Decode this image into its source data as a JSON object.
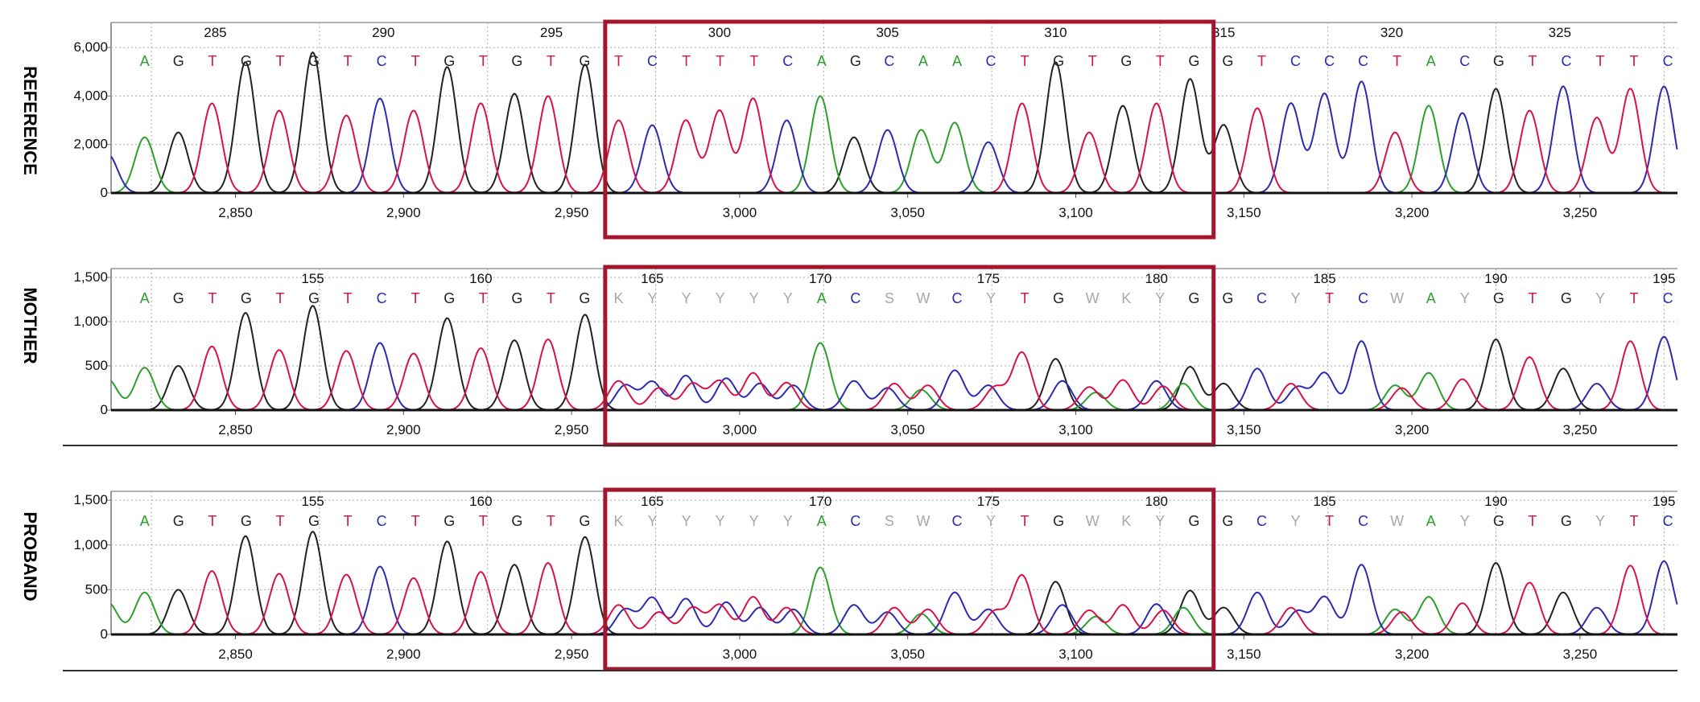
{
  "colors": {
    "A": "#2ca02c",
    "C": "#2b2bb0",
    "G": "#222222",
    "T": "#d8124a",
    "N": "#a8a8a8",
    "box": "#a3162c"
  },
  "chart_data": [
    {
      "type": "line",
      "name": "REFERENCE",
      "ylim": [
        0,
        6500
      ],
      "yticks": [
        0,
        2000,
        4000,
        6000
      ],
      "ytick_labels": [
        "0",
        "2,000",
        "4,000",
        "6,000"
      ],
      "xlim": [
        2813,
        3279
      ],
      "xticks": [
        2850,
        2900,
        2950,
        3000,
        3050,
        3100,
        3150,
        3200,
        3250
      ],
      "xtick_labels": [
        "2,850",
        "2,900",
        "2,950",
        "3,000",
        "3,050",
        "3,100",
        "3,150",
        "3,200",
        "3,250"
      ],
      "first_base_x": 2823,
      "base_spacing": 10.07,
      "bases": "AGTGTGTCTGTGTGTCTTTCAGCAACTGTGTGGTCCCTACGTCTTC",
      "positions": [
        {
          "label": "285",
          "x": 2844
        },
        {
          "label": "290",
          "x": 2894
        },
        {
          "label": "295",
          "x": 2944
        },
        {
          "label": "300",
          "x": 2994
        },
        {
          "label": "305",
          "x": 3044
        },
        {
          "label": "310",
          "x": 3094
        },
        {
          "label": "315",
          "x": 3144
        },
        {
          "label": "320",
          "x": 3194
        },
        {
          "label": "325",
          "x": 3244
        }
      ],
      "highlight_range": [
        2960,
        3141
      ],
      "peaks": [
        {
          "x": 2812,
          "h": 1600,
          "b": "C"
        },
        {
          "x": 2823,
          "h": 2300,
          "b": "A"
        },
        {
          "x": 2833,
          "h": 2500,
          "b": "G"
        },
        {
          "x": 2843,
          "h": 3700,
          "b": "T"
        },
        {
          "x": 2853,
          "h": 5400,
          "b": "G"
        },
        {
          "x": 2863,
          "h": 3400,
          "b": "T"
        },
        {
          "x": 2873,
          "h": 5800,
          "b": "G"
        },
        {
          "x": 2883,
          "h": 3200,
          "b": "T"
        },
        {
          "x": 2893,
          "h": 3900,
          "b": "C"
        },
        {
          "x": 2903,
          "h": 3400,
          "b": "T"
        },
        {
          "x": 2913,
          "h": 5200,
          "b": "G"
        },
        {
          "x": 2923,
          "h": 3700,
          "b": "T"
        },
        {
          "x": 2933,
          "h": 4100,
          "b": "G"
        },
        {
          "x": 2943,
          "h": 4000,
          "b": "T"
        },
        {
          "x": 2954,
          "h": 5300,
          "b": "G"
        },
        {
          "x": 2964,
          "h": 3000,
          "b": "T"
        },
        {
          "x": 2974,
          "h": 2800,
          "b": "C"
        },
        {
          "x": 2984,
          "h": 3000,
          "b": "T"
        },
        {
          "x": 2994,
          "h": 3400,
          "b": "T"
        },
        {
          "x": 3004,
          "h": 3900,
          "b": "T"
        },
        {
          "x": 3014,
          "h": 3000,
          "b": "C"
        },
        {
          "x": 3024,
          "h": 4000,
          "b": "A"
        },
        {
          "x": 3034,
          "h": 2300,
          "b": "G"
        },
        {
          "x": 3044,
          "h": 2600,
          "b": "C"
        },
        {
          "x": 3054,
          "h": 2600,
          "b": "A"
        },
        {
          "x": 3064,
          "h": 2900,
          "b": "A"
        },
        {
          "x": 3074,
          "h": 2100,
          "b": "C"
        },
        {
          "x": 3084,
          "h": 3700,
          "b": "T"
        },
        {
          "x": 3094,
          "h": 5400,
          "b": "G"
        },
        {
          "x": 3104,
          "h": 2500,
          "b": "T"
        },
        {
          "x": 3114,
          "h": 3600,
          "b": "G"
        },
        {
          "x": 3124,
          "h": 3700,
          "b": "T"
        },
        {
          "x": 3134,
          "h": 4700,
          "b": "G"
        },
        {
          "x": 3144,
          "h": 2800,
          "b": "G"
        },
        {
          "x": 3154,
          "h": 3500,
          "b": "T"
        },
        {
          "x": 3164,
          "h": 3700,
          "b": "C"
        },
        {
          "x": 3174,
          "h": 4100,
          "b": "C"
        },
        {
          "x": 3185,
          "h": 4600,
          "b": "C"
        },
        {
          "x": 3195,
          "h": 2500,
          "b": "T"
        },
        {
          "x": 3205,
          "h": 3600,
          "b": "A"
        },
        {
          "x": 3215,
          "h": 3300,
          "b": "C"
        },
        {
          "x": 3225,
          "h": 4300,
          "b": "G"
        },
        {
          "x": 3235,
          "h": 3400,
          "b": "T"
        },
        {
          "x": 3245,
          "h": 4400,
          "b": "C"
        },
        {
          "x": 3255,
          "h": 3100,
          "b": "T"
        },
        {
          "x": 3265,
          "h": 4300,
          "b": "T"
        },
        {
          "x": 3275,
          "h": 4400,
          "b": "C"
        }
      ]
    },
    {
      "type": "line",
      "name": "MOTHER",
      "ylim": [
        0,
        1600
      ],
      "yticks": [
        0,
        500,
        1000,
        1500
      ],
      "ytick_labels": [
        "0",
        "500",
        "1,000",
        "1,500"
      ],
      "xlim": [
        2813,
        3279
      ],
      "xticks": [
        2850,
        2900,
        2950,
        3000,
        3050,
        3100,
        3150,
        3200,
        3250
      ],
      "xtick_labels": [
        "2,850",
        "2,900",
        "2,950",
        "3,000",
        "3,050",
        "3,100",
        "3,150",
        "3,200",
        "3,250"
      ],
      "first_base_x": 2823,
      "base_spacing": 10.07,
      "bases": "AGTGTGTCTGTGTGKYYYYYACSWCYTGWKYGGCYTCWAYGTGYTC",
      "positions": [
        {
          "label": "155",
          "x": 2873
        },
        {
          "label": "160",
          "x": 2923
        },
        {
          "label": "165",
          "x": 2974
        },
        {
          "label": "170",
          "x": 3024
        },
        {
          "label": "175",
          "x": 3074
        },
        {
          "label": "180",
          "x": 3124
        },
        {
          "label": "185",
          "x": 3174
        },
        {
          "label": "190",
          "x": 3225
        },
        {
          "label": "195",
          "x": 3275
        }
      ],
      "highlight_range": [
        2960,
        3141
      ],
      "peaks": [
        {
          "x": 2812,
          "h": 350,
          "b": "A"
        },
        {
          "x": 2823,
          "h": 480,
          "b": "A"
        },
        {
          "x": 2833,
          "h": 500,
          "b": "G"
        },
        {
          "x": 2843,
          "h": 720,
          "b": "T"
        },
        {
          "x": 2853,
          "h": 1100,
          "b": "G"
        },
        {
          "x": 2863,
          "h": 680,
          "b": "T"
        },
        {
          "x": 2873,
          "h": 1180,
          "b": "G"
        },
        {
          "x": 2883,
          "h": 670,
          "b": "T"
        },
        {
          "x": 2893,
          "h": 760,
          "b": "C"
        },
        {
          "x": 2903,
          "h": 640,
          "b": "T"
        },
        {
          "x": 2913,
          "h": 1040,
          "b": "G"
        },
        {
          "x": 2923,
          "h": 700,
          "b": "T"
        },
        {
          "x": 2933,
          "h": 790,
          "b": "G"
        },
        {
          "x": 2943,
          "h": 800,
          "b": "T"
        },
        {
          "x": 2954,
          "h": 1080,
          "b": "G"
        },
        {
          "x": 2964,
          "h": 330,
          "b": "T"
        },
        {
          "x": 2966,
          "h": 280,
          "b": "C"
        },
        {
          "x": 2974,
          "h": 320,
          "b": "C"
        },
        {
          "x": 2976,
          "h": 250,
          "b": "T"
        },
        {
          "x": 2984,
          "h": 390,
          "b": "C"
        },
        {
          "x": 2986,
          "h": 300,
          "b": "T"
        },
        {
          "x": 2994,
          "h": 330,
          "b": "T"
        },
        {
          "x": 2996,
          "h": 360,
          "b": "C"
        },
        {
          "x": 3004,
          "h": 420,
          "b": "T"
        },
        {
          "x": 3006,
          "h": 300,
          "b": "C"
        },
        {
          "x": 3014,
          "h": 310,
          "b": "T"
        },
        {
          "x": 3016,
          "h": 280,
          "b": "C"
        },
        {
          "x": 3024,
          "h": 760,
          "b": "A"
        },
        {
          "x": 3034,
          "h": 330,
          "b": "C"
        },
        {
          "x": 3044,
          "h": 250,
          "b": "C"
        },
        {
          "x": 3046,
          "h": 300,
          "b": "T"
        },
        {
          "x": 3054,
          "h": 230,
          "b": "A"
        },
        {
          "x": 3056,
          "h": 280,
          "b": "T"
        },
        {
          "x": 3064,
          "h": 450,
          "b": "C"
        },
        {
          "x": 3074,
          "h": 280,
          "b": "C"
        },
        {
          "x": 3076,
          "h": 260,
          "b": "T"
        },
        {
          "x": 3084,
          "h": 650,
          "b": "T"
        },
        {
          "x": 3094,
          "h": 580,
          "b": "G"
        },
        {
          "x": 3096,
          "h": 330,
          "b": "C"
        },
        {
          "x": 3104,
          "h": 260,
          "b": "T"
        },
        {
          "x": 3106,
          "h": 200,
          "b": "A"
        },
        {
          "x": 3114,
          "h": 340,
          "b": "T"
        },
        {
          "x": 3124,
          "h": 330,
          "b": "C"
        },
        {
          "x": 3126,
          "h": 270,
          "b": "T"
        },
        {
          "x": 3132,
          "h": 300,
          "b": "A"
        },
        {
          "x": 3134,
          "h": 490,
          "b": "G"
        },
        {
          "x": 3144,
          "h": 300,
          "b": "G"
        },
        {
          "x": 3154,
          "h": 470,
          "b": "C"
        },
        {
          "x": 3164,
          "h": 300,
          "b": "T"
        },
        {
          "x": 3166,
          "h": 260,
          "b": "C"
        },
        {
          "x": 3174,
          "h": 420,
          "b": "C"
        },
        {
          "x": 3185,
          "h": 780,
          "b": "C"
        },
        {
          "x": 3195,
          "h": 280,
          "b": "A"
        },
        {
          "x": 3197,
          "h": 250,
          "b": "T"
        },
        {
          "x": 3205,
          "h": 420,
          "b": "A"
        },
        {
          "x": 3215,
          "h": 350,
          "b": "T"
        },
        {
          "x": 3225,
          "h": 800,
          "b": "G"
        },
        {
          "x": 3235,
          "h": 600,
          "b": "T"
        },
        {
          "x": 3245,
          "h": 470,
          "b": "G"
        },
        {
          "x": 3255,
          "h": 300,
          "b": "C"
        },
        {
          "x": 3265,
          "h": 780,
          "b": "T"
        },
        {
          "x": 3275,
          "h": 830,
          "b": "C"
        }
      ]
    },
    {
      "type": "line",
      "name": "PROBAND",
      "ylim": [
        0,
        1600
      ],
      "yticks": [
        0,
        500,
        1000,
        1500
      ],
      "ytick_labels": [
        "0",
        "500",
        "1,000",
        "1,500"
      ],
      "xlim": [
        2813,
        3279
      ],
      "xticks": [
        2850,
        2900,
        2950,
        3000,
        3050,
        3100,
        3150,
        3200,
        3250
      ],
      "xtick_labels": [
        "2,850",
        "2,900",
        "2,950",
        "3,000",
        "3,050",
        "3,100",
        "3,150",
        "3,200",
        "3,250"
      ],
      "first_base_x": 2823,
      "base_spacing": 10.07,
      "bases": "AGTGTGTCTGTGTGKYYYYYACSWCYTGWKYGGCYTCWAYGTGYTC",
      "positions": [
        {
          "label": "155",
          "x": 2873
        },
        {
          "label": "160",
          "x": 2923
        },
        {
          "label": "165",
          "x": 2974
        },
        {
          "label": "170",
          "x": 3024
        },
        {
          "label": "175",
          "x": 3074
        },
        {
          "label": "180",
          "x": 3124
        },
        {
          "label": "185",
          "x": 3174
        },
        {
          "label": "190",
          "x": 3225
        },
        {
          "label": "195",
          "x": 3275
        }
      ],
      "highlight_range": [
        2960,
        3141
      ],
      "peaks": [
        {
          "x": 2812,
          "h": 360,
          "b": "A"
        },
        {
          "x": 2823,
          "h": 470,
          "b": "A"
        },
        {
          "x": 2833,
          "h": 500,
          "b": "G"
        },
        {
          "x": 2843,
          "h": 710,
          "b": "T"
        },
        {
          "x": 2853,
          "h": 1100,
          "b": "G"
        },
        {
          "x": 2863,
          "h": 680,
          "b": "T"
        },
        {
          "x": 2873,
          "h": 1150,
          "b": "G"
        },
        {
          "x": 2883,
          "h": 670,
          "b": "T"
        },
        {
          "x": 2893,
          "h": 760,
          "b": "C"
        },
        {
          "x": 2903,
          "h": 630,
          "b": "T"
        },
        {
          "x": 2913,
          "h": 1040,
          "b": "G"
        },
        {
          "x": 2923,
          "h": 700,
          "b": "T"
        },
        {
          "x": 2933,
          "h": 780,
          "b": "G"
        },
        {
          "x": 2943,
          "h": 800,
          "b": "T"
        },
        {
          "x": 2954,
          "h": 1090,
          "b": "G"
        },
        {
          "x": 2964,
          "h": 330,
          "b": "T"
        },
        {
          "x": 2966,
          "h": 280,
          "b": "C"
        },
        {
          "x": 2974,
          "h": 410,
          "b": "C"
        },
        {
          "x": 2976,
          "h": 250,
          "b": "T"
        },
        {
          "x": 2984,
          "h": 400,
          "b": "C"
        },
        {
          "x": 2986,
          "h": 300,
          "b": "T"
        },
        {
          "x": 2994,
          "h": 330,
          "b": "T"
        },
        {
          "x": 2996,
          "h": 360,
          "b": "C"
        },
        {
          "x": 3004,
          "h": 420,
          "b": "T"
        },
        {
          "x": 3006,
          "h": 300,
          "b": "C"
        },
        {
          "x": 3014,
          "h": 300,
          "b": "T"
        },
        {
          "x": 3016,
          "h": 280,
          "b": "C"
        },
        {
          "x": 3024,
          "h": 750,
          "b": "A"
        },
        {
          "x": 3034,
          "h": 330,
          "b": "C"
        },
        {
          "x": 3044,
          "h": 250,
          "b": "C"
        },
        {
          "x": 3046,
          "h": 300,
          "b": "T"
        },
        {
          "x": 3054,
          "h": 230,
          "b": "A"
        },
        {
          "x": 3056,
          "h": 280,
          "b": "T"
        },
        {
          "x": 3064,
          "h": 470,
          "b": "C"
        },
        {
          "x": 3074,
          "h": 280,
          "b": "C"
        },
        {
          "x": 3076,
          "h": 260,
          "b": "T"
        },
        {
          "x": 3084,
          "h": 660,
          "b": "T"
        },
        {
          "x": 3094,
          "h": 590,
          "b": "G"
        },
        {
          "x": 3096,
          "h": 330,
          "b": "C"
        },
        {
          "x": 3104,
          "h": 270,
          "b": "T"
        },
        {
          "x": 3106,
          "h": 200,
          "b": "A"
        },
        {
          "x": 3114,
          "h": 330,
          "b": "T"
        },
        {
          "x": 3124,
          "h": 340,
          "b": "C"
        },
        {
          "x": 3126,
          "h": 270,
          "b": "T"
        },
        {
          "x": 3132,
          "h": 300,
          "b": "A"
        },
        {
          "x": 3134,
          "h": 490,
          "b": "G"
        },
        {
          "x": 3144,
          "h": 300,
          "b": "G"
        },
        {
          "x": 3154,
          "h": 470,
          "b": "C"
        },
        {
          "x": 3164,
          "h": 300,
          "b": "T"
        },
        {
          "x": 3166,
          "h": 260,
          "b": "C"
        },
        {
          "x": 3174,
          "h": 420,
          "b": "C"
        },
        {
          "x": 3185,
          "h": 780,
          "b": "C"
        },
        {
          "x": 3195,
          "h": 280,
          "b": "A"
        },
        {
          "x": 3197,
          "h": 250,
          "b": "T"
        },
        {
          "x": 3205,
          "h": 420,
          "b": "A"
        },
        {
          "x": 3215,
          "h": 350,
          "b": "T"
        },
        {
          "x": 3225,
          "h": 800,
          "b": "G"
        },
        {
          "x": 3235,
          "h": 580,
          "b": "T"
        },
        {
          "x": 3245,
          "h": 470,
          "b": "G"
        },
        {
          "x": 3255,
          "h": 300,
          "b": "C"
        },
        {
          "x": 3265,
          "h": 770,
          "b": "T"
        },
        {
          "x": 3275,
          "h": 820,
          "b": "C"
        }
      ]
    }
  ]
}
